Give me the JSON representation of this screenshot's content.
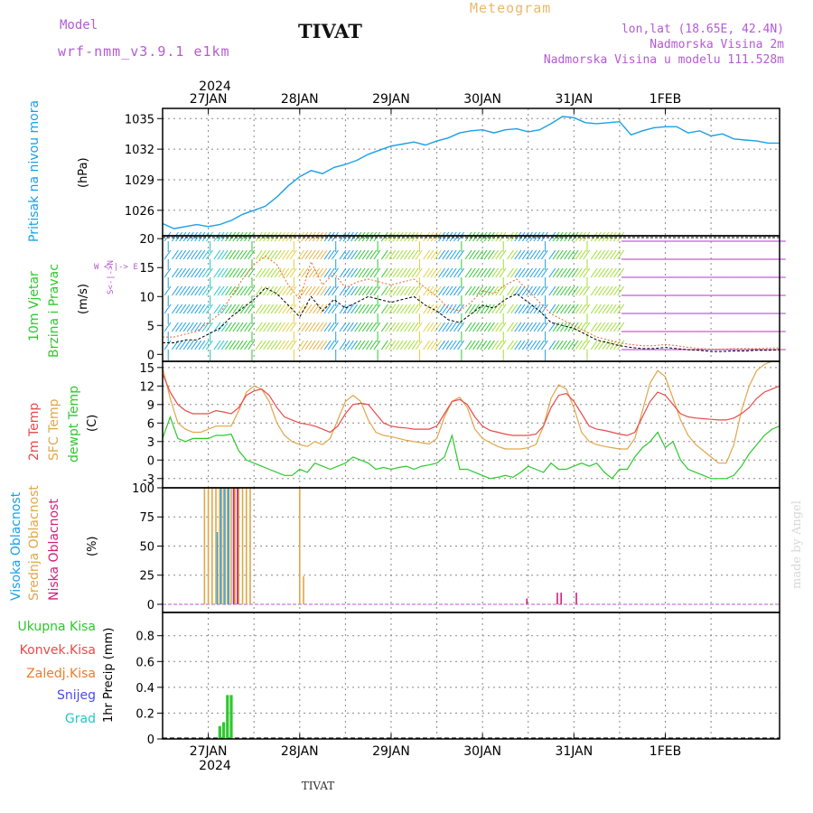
{
  "header": {
    "model_label": "Model",
    "model_value": "wrf-nmm_v3.9.1 e1km",
    "station": "TIVAT",
    "meteogram": "Meteogram",
    "coords": "lon,lat (18.65E, 42.4N)",
    "altitude": "Nadmorska Visina 2m",
    "model_altitude": "Nadmorska Visina u modelu 111.528m"
  },
  "footer": {
    "station": "TIVAT",
    "watermark": "made by Angel"
  },
  "time_axis": {
    "year": "2024",
    "dates": [
      "27JAN",
      "28JAN",
      "29JAN",
      "30JAN",
      "31JAN",
      "1FEB"
    ],
    "range_hours": [
      -12,
      150
    ]
  },
  "colors": {
    "pressure": "#1aa0e8",
    "t2m": "#e84a4a",
    "sfc": "#e0a64a",
    "dewpt": "#2ec82e",
    "high_cloud": "#1aa0e8",
    "mid_cloud": "#e0a64a",
    "low_cloud": "#d0207a",
    "precip": "#2ec82e",
    "conv": "#e84a4a",
    "freezing": "#f07a2a",
    "snow": "#4a4ae8",
    "hail": "#20c8c8",
    "axis_label_purple": "#b45ad6"
  },
  "chart_data": [
    {
      "type": "line",
      "panel": "pressure",
      "ylabel": "Pritisak na nivou mora",
      "unit": "(hPa)",
      "yticks": [
        1026,
        1029,
        1032,
        1035
      ],
      "ylim": [
        1023.5,
        1036
      ],
      "series": [
        {
          "x": [
            -12,
            -9,
            -6,
            -3,
            0,
            3,
            6,
            9,
            12,
            15,
            18,
            21,
            24,
            27,
            30,
            33,
            36,
            39,
            42,
            45,
            48,
            51,
            54,
            57,
            60,
            63,
            66,
            69,
            72,
            75,
            78,
            81,
            84,
            87,
            90,
            93,
            96,
            99,
            102,
            105,
            108,
            111,
            114,
            117,
            120,
            123,
            126,
            129,
            132,
            135,
            138,
            141,
            144,
            147,
            150
          ],
          "values": [
            1024.7,
            1024.2,
            1024.4,
            1024.6,
            1024.4,
            1024.6,
            1025.0,
            1025.6,
            1026.0,
            1026.4,
            1027.3,
            1028.4,
            1029.3,
            1029.9,
            1029.6,
            1030.2,
            1030.5,
            1030.9,
            1031.5,
            1031.9,
            1032.3,
            1032.5,
            1032.7,
            1032.4,
            1032.8,
            1033.1,
            1033.6,
            1033.8,
            1033.9,
            1033.6,
            1033.9,
            1034.0,
            1033.7,
            1033.9,
            1034.5,
            1035.2,
            1035.1,
            1034.6,
            1034.5,
            1034.6,
            1034.7,
            1033.4,
            1033.8,
            1034.1,
            1034.2,
            1034.2,
            1033.6,
            1033.8,
            1033.3,
            1033.5,
            1033.0,
            1032.9,
            1032.8,
            1032.6,
            1032.6
          ]
        }
      ]
    },
    {
      "type": "line",
      "panel": "wind",
      "ylabel": "10m Vjetar Brzina i Pravac",
      "unit": "(m/s)",
      "direction_legend": "W <-|-> E",
      "yticks": [
        0,
        5,
        10,
        15,
        20
      ],
      "ylim": [
        -1.2,
        20.5
      ],
      "series": [
        {
          "x": [
            -12,
            -9,
            -6,
            -3,
            0,
            3,
            6,
            9,
            12,
            15,
            18,
            21,
            24,
            27,
            30,
            33,
            36,
            39,
            42,
            45,
            48,
            51,
            54,
            57,
            60,
            63,
            66,
            69,
            72,
            75,
            78,
            81,
            84,
            87,
            90,
            93,
            96,
            99,
            102,
            105,
            108,
            111,
            114,
            117,
            120,
            123,
            126,
            129,
            132,
            135,
            138,
            141,
            144,
            147,
            150
          ],
          "values": [
            2.0,
            2.0,
            2.5,
            2.5,
            3.5,
            4.5,
            6.5,
            8.0,
            9.5,
            11.5,
            10.5,
            8.5,
            6.5,
            10.0,
            7.5,
            9.5,
            8.0,
            9.0,
            10.0,
            9.5,
            9.0,
            9.5,
            10.0,
            8.5,
            7.5,
            6.0,
            5.5,
            7.0,
            8.5,
            8.0,
            9.5,
            10.5,
            9.0,
            7.5,
            5.5,
            5.0,
            4.5,
            3.5,
            2.5,
            2.0,
            1.5,
            1.2,
            1.0,
            1.0,
            1.2,
            1.0,
            0.8,
            0.7,
            0.5,
            0.5,
            0.6,
            0.6,
            0.7,
            0.7,
            0.8
          ]
        },
        {
          "x": [
            -12,
            -9,
            -6,
            -3,
            0,
            3,
            6,
            9,
            12,
            15,
            18,
            21,
            24,
            27,
            30,
            33,
            36,
            39,
            42,
            45,
            48,
            51,
            54,
            57,
            60,
            63,
            66,
            69,
            72,
            75,
            78,
            81,
            84,
            87,
            90,
            93,
            96,
            99,
            102,
            105,
            108,
            111,
            114,
            117,
            120,
            123,
            126,
            129,
            132,
            135,
            138,
            141,
            144,
            147,
            150
          ],
          "values": [
            3.0,
            3.0,
            3.5,
            4.0,
            5.5,
            7.0,
            10.0,
            13.0,
            15.5,
            17.0,
            15.5,
            12.0,
            9.5,
            16.0,
            12.0,
            14.0,
            11.5,
            12.5,
            13.0,
            12.5,
            12.0,
            12.5,
            13.0,
            11.5,
            10.0,
            8.0,
            7.5,
            9.0,
            11.0,
            10.5,
            12.0,
            13.0,
            11.0,
            9.0,
            7.0,
            6.0,
            5.0,
            4.0,
            3.0,
            2.5,
            2.0,
            1.7,
            1.5,
            1.5,
            1.7,
            1.5,
            1.2,
            1.0,
            0.9,
            0.9,
            1.0,
            1.0,
            1.0,
            1.1,
            1.1
          ]
        }
      ],
      "wind_barbs": {
        "start_hour": -12,
        "step_hours": 1,
        "directions_deg": "from data",
        "color_order": [
          "#1aa0e8",
          "#20c8c8",
          "#2ec82e",
          "#9ee030",
          "#e0d040",
          "#e8b040",
          "#1aa0e8",
          "#2ec82e",
          "#9ee030",
          "#e0d040",
          "#1aa0e8",
          "#2ec82e",
          "#9ee030",
          "#1aa0e8",
          "#2ec82e",
          "#9ee030",
          "#b830d8",
          "#b830d8",
          "#b830d8"
        ],
        "band_hours": [
          -12,
          -2,
          4,
          12,
          18,
          24,
          30,
          38,
          46,
          54,
          60,
          66,
          74,
          80,
          90,
          96,
          108,
          126,
          150
        ]
      }
    },
    {
      "type": "line",
      "panel": "temperature",
      "ylabel": "2m Temp",
      "ylabel2": "SFC Temp",
      "ylabel3": "dewpt Temp",
      "unit": "(C)",
      "yticks": [
        -3,
        0,
        3,
        6,
        9,
        12,
        15
      ],
      "ylim": [
        -4.5,
        16
      ],
      "series": [
        {
          "name": "2m Temp",
          "x": [
            -12,
            -10,
            -8,
            -6,
            -4,
            -2,
            0,
            2,
            4,
            6,
            8,
            10,
            12,
            14,
            16,
            18,
            20,
            22,
            24,
            26,
            28,
            30,
            32,
            34,
            36,
            38,
            40,
            42,
            44,
            46,
            48,
            50,
            52,
            54,
            56,
            58,
            60,
            62,
            64,
            66,
            68,
            70,
            72,
            74,
            76,
            78,
            80,
            82,
            84,
            86,
            88,
            90,
            92,
            94,
            96,
            98,
            100,
            102,
            104,
            106,
            108,
            110,
            112,
            114,
            116,
            118,
            120,
            122,
            124,
            126,
            128,
            130,
            132,
            134,
            136,
            138,
            140,
            142,
            144,
            146,
            148,
            150
          ],
          "values": [
            14.0,
            11.0,
            9.0,
            8.0,
            7.5,
            7.5,
            7.5,
            8.0,
            7.8,
            7.5,
            8.5,
            10.5,
            11.2,
            11.5,
            10.5,
            8.5,
            7.0,
            6.5,
            6.0,
            5.8,
            5.5,
            5.0,
            4.5,
            5.5,
            7.5,
            9.0,
            9.2,
            9.0,
            7.5,
            6.0,
            5.5,
            5.3,
            5.2,
            5.0,
            5.0,
            5.0,
            5.5,
            7.5,
            9.5,
            9.8,
            9.0,
            7.0,
            5.5,
            4.8,
            4.5,
            4.2,
            4.0,
            4.0,
            4.0,
            4.2,
            5.5,
            8.5,
            10.5,
            10.8,
            9.5,
            7.5,
            5.5,
            5.0,
            4.8,
            4.5,
            4.2,
            4.0,
            4.5,
            7.0,
            9.5,
            11.0,
            10.5,
            9.0,
            7.5,
            7.0,
            6.8,
            6.7,
            6.6,
            6.5,
            6.5,
            6.8,
            7.5,
            8.5,
            10.0,
            11.0,
            11.5,
            12.0
          ]
        },
        {
          "name": "SFC Temp",
          "x": [
            -12,
            -10,
            -8,
            -6,
            -4,
            -2,
            0,
            2,
            4,
            6,
            8,
            10,
            12,
            14,
            16,
            18,
            20,
            22,
            24,
            26,
            28,
            30,
            32,
            34,
            36,
            38,
            40,
            42,
            44,
            46,
            48,
            50,
            52,
            54,
            56,
            58,
            60,
            62,
            64,
            66,
            68,
            70,
            72,
            74,
            76,
            78,
            80,
            82,
            84,
            86,
            88,
            90,
            92,
            94,
            96,
            98,
            100,
            102,
            104,
            106,
            108,
            110,
            112,
            114,
            116,
            118,
            120,
            122,
            124,
            126,
            128,
            130,
            132,
            134,
            136,
            138,
            140,
            142,
            144,
            146,
            148,
            150
          ],
          "values": [
            15.0,
            10.0,
            6.0,
            5.0,
            4.5,
            4.5,
            5.0,
            5.5,
            5.5,
            5.5,
            8.0,
            11.0,
            12.0,
            11.5,
            9.5,
            6.0,
            4.0,
            3.0,
            2.5,
            2.2,
            3.0,
            2.5,
            3.5,
            6.5,
            9.5,
            10.5,
            9.5,
            6.5,
            4.5,
            4.0,
            3.8,
            3.5,
            3.2,
            3.0,
            2.8,
            2.6,
            3.5,
            7.0,
            9.5,
            10.2,
            8.5,
            5.0,
            3.5,
            2.8,
            2.2,
            1.8,
            1.8,
            1.8,
            2.0,
            2.5,
            5.5,
            10.0,
            12.2,
            11.5,
            8.5,
            4.5,
            3.0,
            2.5,
            2.2,
            2.0,
            1.8,
            1.8,
            3.5,
            8.0,
            12.5,
            14.5,
            13.5,
            10.0,
            6.5,
            4.0,
            2.5,
            1.5,
            0.5,
            -0.5,
            -0.5,
            2.5,
            8.0,
            12.0,
            14.5,
            15.5,
            16.0,
            16.0
          ]
        },
        {
          "name": "dewpt Temp",
          "x": [
            -12,
            -10,
            -8,
            -6,
            -4,
            -2,
            0,
            2,
            4,
            6,
            8,
            10,
            12,
            14,
            16,
            18,
            20,
            22,
            24,
            26,
            28,
            30,
            32,
            34,
            36,
            38,
            40,
            42,
            44,
            46,
            48,
            50,
            52,
            54,
            56,
            58,
            60,
            62,
            64,
            66,
            68,
            70,
            72,
            74,
            76,
            78,
            80,
            82,
            84,
            86,
            88,
            90,
            92,
            94,
            96,
            98,
            100,
            102,
            104,
            106,
            108,
            110,
            112,
            114,
            116,
            118,
            120,
            122,
            124,
            126,
            128,
            130,
            132,
            134,
            136,
            138,
            140,
            142,
            144,
            146,
            148,
            150
          ],
          "values": [
            3.5,
            7.0,
            3.5,
            3.0,
            3.5,
            3.5,
            3.5,
            4.0,
            4.0,
            4.2,
            1.5,
            0.0,
            -0.5,
            -1.0,
            -1.5,
            -2.0,
            -2.5,
            -2.5,
            -1.5,
            -2.0,
            -0.5,
            -1.0,
            -1.5,
            -1.0,
            -0.5,
            0.5,
            0.0,
            -0.5,
            -1.5,
            -1.2,
            -1.5,
            -1.2,
            -1.0,
            -1.5,
            -1.0,
            -0.8,
            -0.5,
            0.5,
            4.0,
            -1.5,
            -1.5,
            -2.0,
            -2.5,
            -3.0,
            -2.8,
            -2.5,
            -2.8,
            -2.0,
            -1.0,
            -1.5,
            -2.0,
            -0.5,
            -1.5,
            -1.5,
            -1.0,
            -0.5,
            -1.0,
            -0.5,
            -2.0,
            -3.0,
            -1.5,
            -1.5,
            0.5,
            2.0,
            3.0,
            4.5,
            2.0,
            3.0,
            0.0,
            -1.5,
            -2.0,
            -2.5,
            -3.0,
            -3.0,
            -3.0,
            -2.5,
            -1.0,
            1.0,
            2.5,
            4.0,
            5.0,
            5.5
          ]
        }
      ]
    },
    {
      "type": "bar",
      "panel": "cloud",
      "ylabel": "Visoka Oblacnost",
      "ylabel2": "Srednja Oblacnost",
      "ylabel3": "Niska Oblacnost",
      "unit": "(%)",
      "yticks": [
        0,
        25,
        50,
        75,
        100
      ],
      "ylim": [
        -7,
        100
      ],
      "series": [
        {
          "name": "Visoka Oblacnost",
          "x": [
            2,
            3,
            4,
            5
          ],
          "values": [
            62,
            100,
            100,
            100
          ]
        },
        {
          "name": "Srednja Oblacnost",
          "x": [
            -1,
            0,
            1,
            2,
            3,
            4,
            5,
            6,
            7,
            8,
            9,
            10,
            11,
            24,
            25
          ],
          "values": [
            100,
            100,
            100,
            100,
            100,
            100,
            100,
            100,
            100,
            100,
            100,
            100,
            100,
            100,
            24
          ]
        },
        {
          "name": "Niska Oblacnost",
          "x": [
            7,
            8,
            84,
            92,
            93,
            97
          ],
          "values": [
            100,
            100,
            5,
            10,
            10,
            10
          ]
        }
      ]
    },
    {
      "type": "bar",
      "panel": "precip",
      "ylabel": "1hr Precip",
      "unit": "(mm)",
      "legend": [
        "Ukupna Kisa",
        "Konvek.Kisa",
        "Zaledj.Kisa",
        "Snijeg",
        "Grad"
      ],
      "yticks": [
        0,
        0.2,
        0.4,
        0.6,
        0.8
      ],
      "ylim": [
        0,
        0.98
      ],
      "series": [
        {
          "name": "Ukupna Kisa",
          "x": [
            3,
            4,
            5,
            6
          ],
          "values": [
            0.1,
            0.13,
            0.34,
            0.34
          ]
        }
      ]
    }
  ]
}
